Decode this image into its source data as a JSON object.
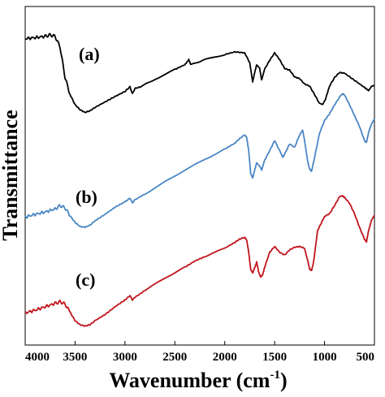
{
  "chart_data": {
    "type": "line",
    "title": "",
    "xlabel": "Wavenumber (cm",
    "xlabel_sup": "-1",
    "xlabel_close": ")",
    "ylabel": "Transmittance",
    "xlim": [
      4000,
      500
    ],
    "x_reversed": true,
    "y_ticks_shown": false,
    "grid": false,
    "x_ticks": [
      "4000",
      "3500",
      "3000",
      "2500",
      "2000",
      "1500",
      "1000",
      "500"
    ],
    "ylim": [
      0,
      100
    ],
    "series": [
      {
        "name": "(a)",
        "color": "#000000",
        "points": [
          [
            4000,
            90.5
          ],
          [
            3900,
            90.8
          ],
          [
            3800,
            91.2
          ],
          [
            3750,
            91.6
          ],
          [
            3700,
            91.2
          ],
          [
            3650,
            88.0
          ],
          [
            3600,
            79.0
          ],
          [
            3550,
            74.0
          ],
          [
            3500,
            71.0
          ],
          [
            3450,
            69.5
          ],
          [
            3400,
            68.7
          ],
          [
            3350,
            69.2
          ],
          [
            3300,
            70.2
          ],
          [
            3200,
            71.8
          ],
          [
            3100,
            73.4
          ],
          [
            3000,
            74.9
          ],
          [
            2950,
            76.3
          ],
          [
            2925,
            74.2
          ],
          [
            2900,
            75.8
          ],
          [
            2850,
            76.2
          ],
          [
            2700,
            78.5
          ],
          [
            2500,
            81.4
          ],
          [
            2400,
            82.8
          ],
          [
            2360,
            84.3
          ],
          [
            2340,
            82.8
          ],
          [
            2200,
            84.3
          ],
          [
            2000,
            85.8
          ],
          [
            1900,
            86.6
          ],
          [
            1800,
            86.3
          ],
          [
            1750,
            83.4
          ],
          [
            1720,
            77.8
          ],
          [
            1700,
            80.5
          ],
          [
            1680,
            82.8
          ],
          [
            1650,
            81.7
          ],
          [
            1630,
            78.2
          ],
          [
            1600,
            81.5
          ],
          [
            1550,
            84.1
          ],
          [
            1500,
            86.3
          ],
          [
            1450,
            84.3
          ],
          [
            1400,
            81.7
          ],
          [
            1350,
            81.2
          ],
          [
            1300,
            79.2
          ],
          [
            1250,
            78.7
          ],
          [
            1200,
            77.1
          ],
          [
            1150,
            76.5
          ],
          [
            1100,
            74.0
          ],
          [
            1050,
            71.3
          ],
          [
            1020,
            71.0
          ],
          [
            990,
            72.7
          ],
          [
            950,
            76.5
          ],
          [
            900,
            79.0
          ],
          [
            850,
            80.5
          ],
          [
            800,
            80.3
          ],
          [
            700,
            78.2
          ],
          [
            600,
            76.1
          ],
          [
            560,
            75.2
          ],
          [
            530,
            76.5
          ],
          [
            500,
            76.7
          ]
        ]
      },
      {
        "name": "(b)",
        "color": "#4a86c5",
        "points": [
          [
            4000,
            37.8
          ],
          [
            3900,
            38.6
          ],
          [
            3800,
            39.3
          ],
          [
            3700,
            40.2
          ],
          [
            3650,
            41.2
          ],
          [
            3600,
            40.5
          ],
          [
            3550,
            38.2
          ],
          [
            3500,
            36.2
          ],
          [
            3450,
            35.0
          ],
          [
            3400,
            34.8
          ],
          [
            3350,
            35.4
          ],
          [
            3300,
            36.7
          ],
          [
            3200,
            38.6
          ],
          [
            3100,
            40.7
          ],
          [
            3000,
            42.3
          ],
          [
            2950,
            43.4
          ],
          [
            2925,
            42.0
          ],
          [
            2900,
            42.9
          ],
          [
            2800,
            44.6
          ],
          [
            2600,
            48.2
          ],
          [
            2400,
            51.7
          ],
          [
            2200,
            54.8
          ],
          [
            2000,
            57.9
          ],
          [
            1900,
            59.6
          ],
          [
            1850,
            61.0
          ],
          [
            1800,
            62.1
          ],
          [
            1780,
            61.3
          ],
          [
            1760,
            57.4
          ],
          [
            1740,
            50.7
          ],
          [
            1720,
            49.3
          ],
          [
            1700,
            51.7
          ],
          [
            1680,
            53.9
          ],
          [
            1650,
            52.9
          ],
          [
            1630,
            51.7
          ],
          [
            1600,
            54.6
          ],
          [
            1550,
            57.4
          ],
          [
            1500,
            60.4
          ],
          [
            1450,
            57.4
          ],
          [
            1420,
            55.4
          ],
          [
            1400,
            56.4
          ],
          [
            1350,
            59.4
          ],
          [
            1300,
            58.4
          ],
          [
            1250,
            62.1
          ],
          [
            1220,
            63.6
          ],
          [
            1200,
            60.4
          ],
          [
            1170,
            54.4
          ],
          [
            1150,
            52.0
          ],
          [
            1130,
            51.3
          ],
          [
            1100,
            55.4
          ],
          [
            1050,
            62.6
          ],
          [
            1000,
            66.3
          ],
          [
            950,
            68.3
          ],
          [
            900,
            70.9
          ],
          [
            850,
            73.2
          ],
          [
            820,
            74.2
          ],
          [
            800,
            73.9
          ],
          [
            750,
            71.0
          ],
          [
            700,
            67.8
          ],
          [
            650,
            64.6
          ],
          [
            600,
            60.4
          ],
          [
            580,
            59.8
          ],
          [
            560,
            62.6
          ],
          [
            530,
            65.3
          ],
          [
            500,
            66.9
          ]
        ]
      },
      {
        "name": "(c)",
        "color": "#c0141c",
        "points": [
          [
            4000,
            9.5
          ],
          [
            3900,
            10.3
          ],
          [
            3800,
            11.3
          ],
          [
            3700,
            12.3
          ],
          [
            3650,
            12.8
          ],
          [
            3600,
            12.1
          ],
          [
            3550,
            9.7
          ],
          [
            3500,
            7.2
          ],
          [
            3450,
            6.0
          ],
          [
            3400,
            5.6
          ],
          [
            3350,
            6.0
          ],
          [
            3300,
            7.2
          ],
          [
            3200,
            9.0
          ],
          [
            3100,
            11.3
          ],
          [
            3000,
            13.3
          ],
          [
            2950,
            14.6
          ],
          [
            2925,
            13.3
          ],
          [
            2900,
            14.1
          ],
          [
            2800,
            16.1
          ],
          [
            2600,
            19.8
          ],
          [
            2400,
            23.0
          ],
          [
            2300,
            24.8
          ],
          [
            2200,
            26.1
          ],
          [
            2000,
            28.6
          ],
          [
            1900,
            30.3
          ],
          [
            1850,
            31.3
          ],
          [
            1800,
            31.8
          ],
          [
            1780,
            31.0
          ],
          [
            1760,
            27.4
          ],
          [
            1740,
            22.3
          ],
          [
            1720,
            21.3
          ],
          [
            1700,
            22.8
          ],
          [
            1680,
            24.5
          ],
          [
            1660,
            21.5
          ],
          [
            1640,
            20.1
          ],
          [
            1620,
            20.8
          ],
          [
            1600,
            23.0
          ],
          [
            1550,
            27.4
          ],
          [
            1500,
            29.1
          ],
          [
            1450,
            27.4
          ],
          [
            1400,
            26.6
          ],
          [
            1350,
            28.1
          ],
          [
            1300,
            28.9
          ],
          [
            1250,
            29.1
          ],
          [
            1200,
            28.6
          ],
          [
            1170,
            25.2
          ],
          [
            1150,
            22.5
          ],
          [
            1130,
            22.0
          ],
          [
            1110,
            24.5
          ],
          [
            1070,
            33.8
          ],
          [
            1000,
            38.0
          ],
          [
            950,
            38.8
          ],
          [
            900,
            41.2
          ],
          [
            850,
            43.8
          ],
          [
            820,
            44.0
          ],
          [
            800,
            43.6
          ],
          [
            750,
            41.9
          ],
          [
            700,
            38.8
          ],
          [
            650,
            34.8
          ],
          [
            600,
            31.3
          ],
          [
            580,
            30.5
          ],
          [
            560,
            33.6
          ],
          [
            530,
            36.7
          ],
          [
            500,
            38.3
          ]
        ]
      }
    ]
  }
}
